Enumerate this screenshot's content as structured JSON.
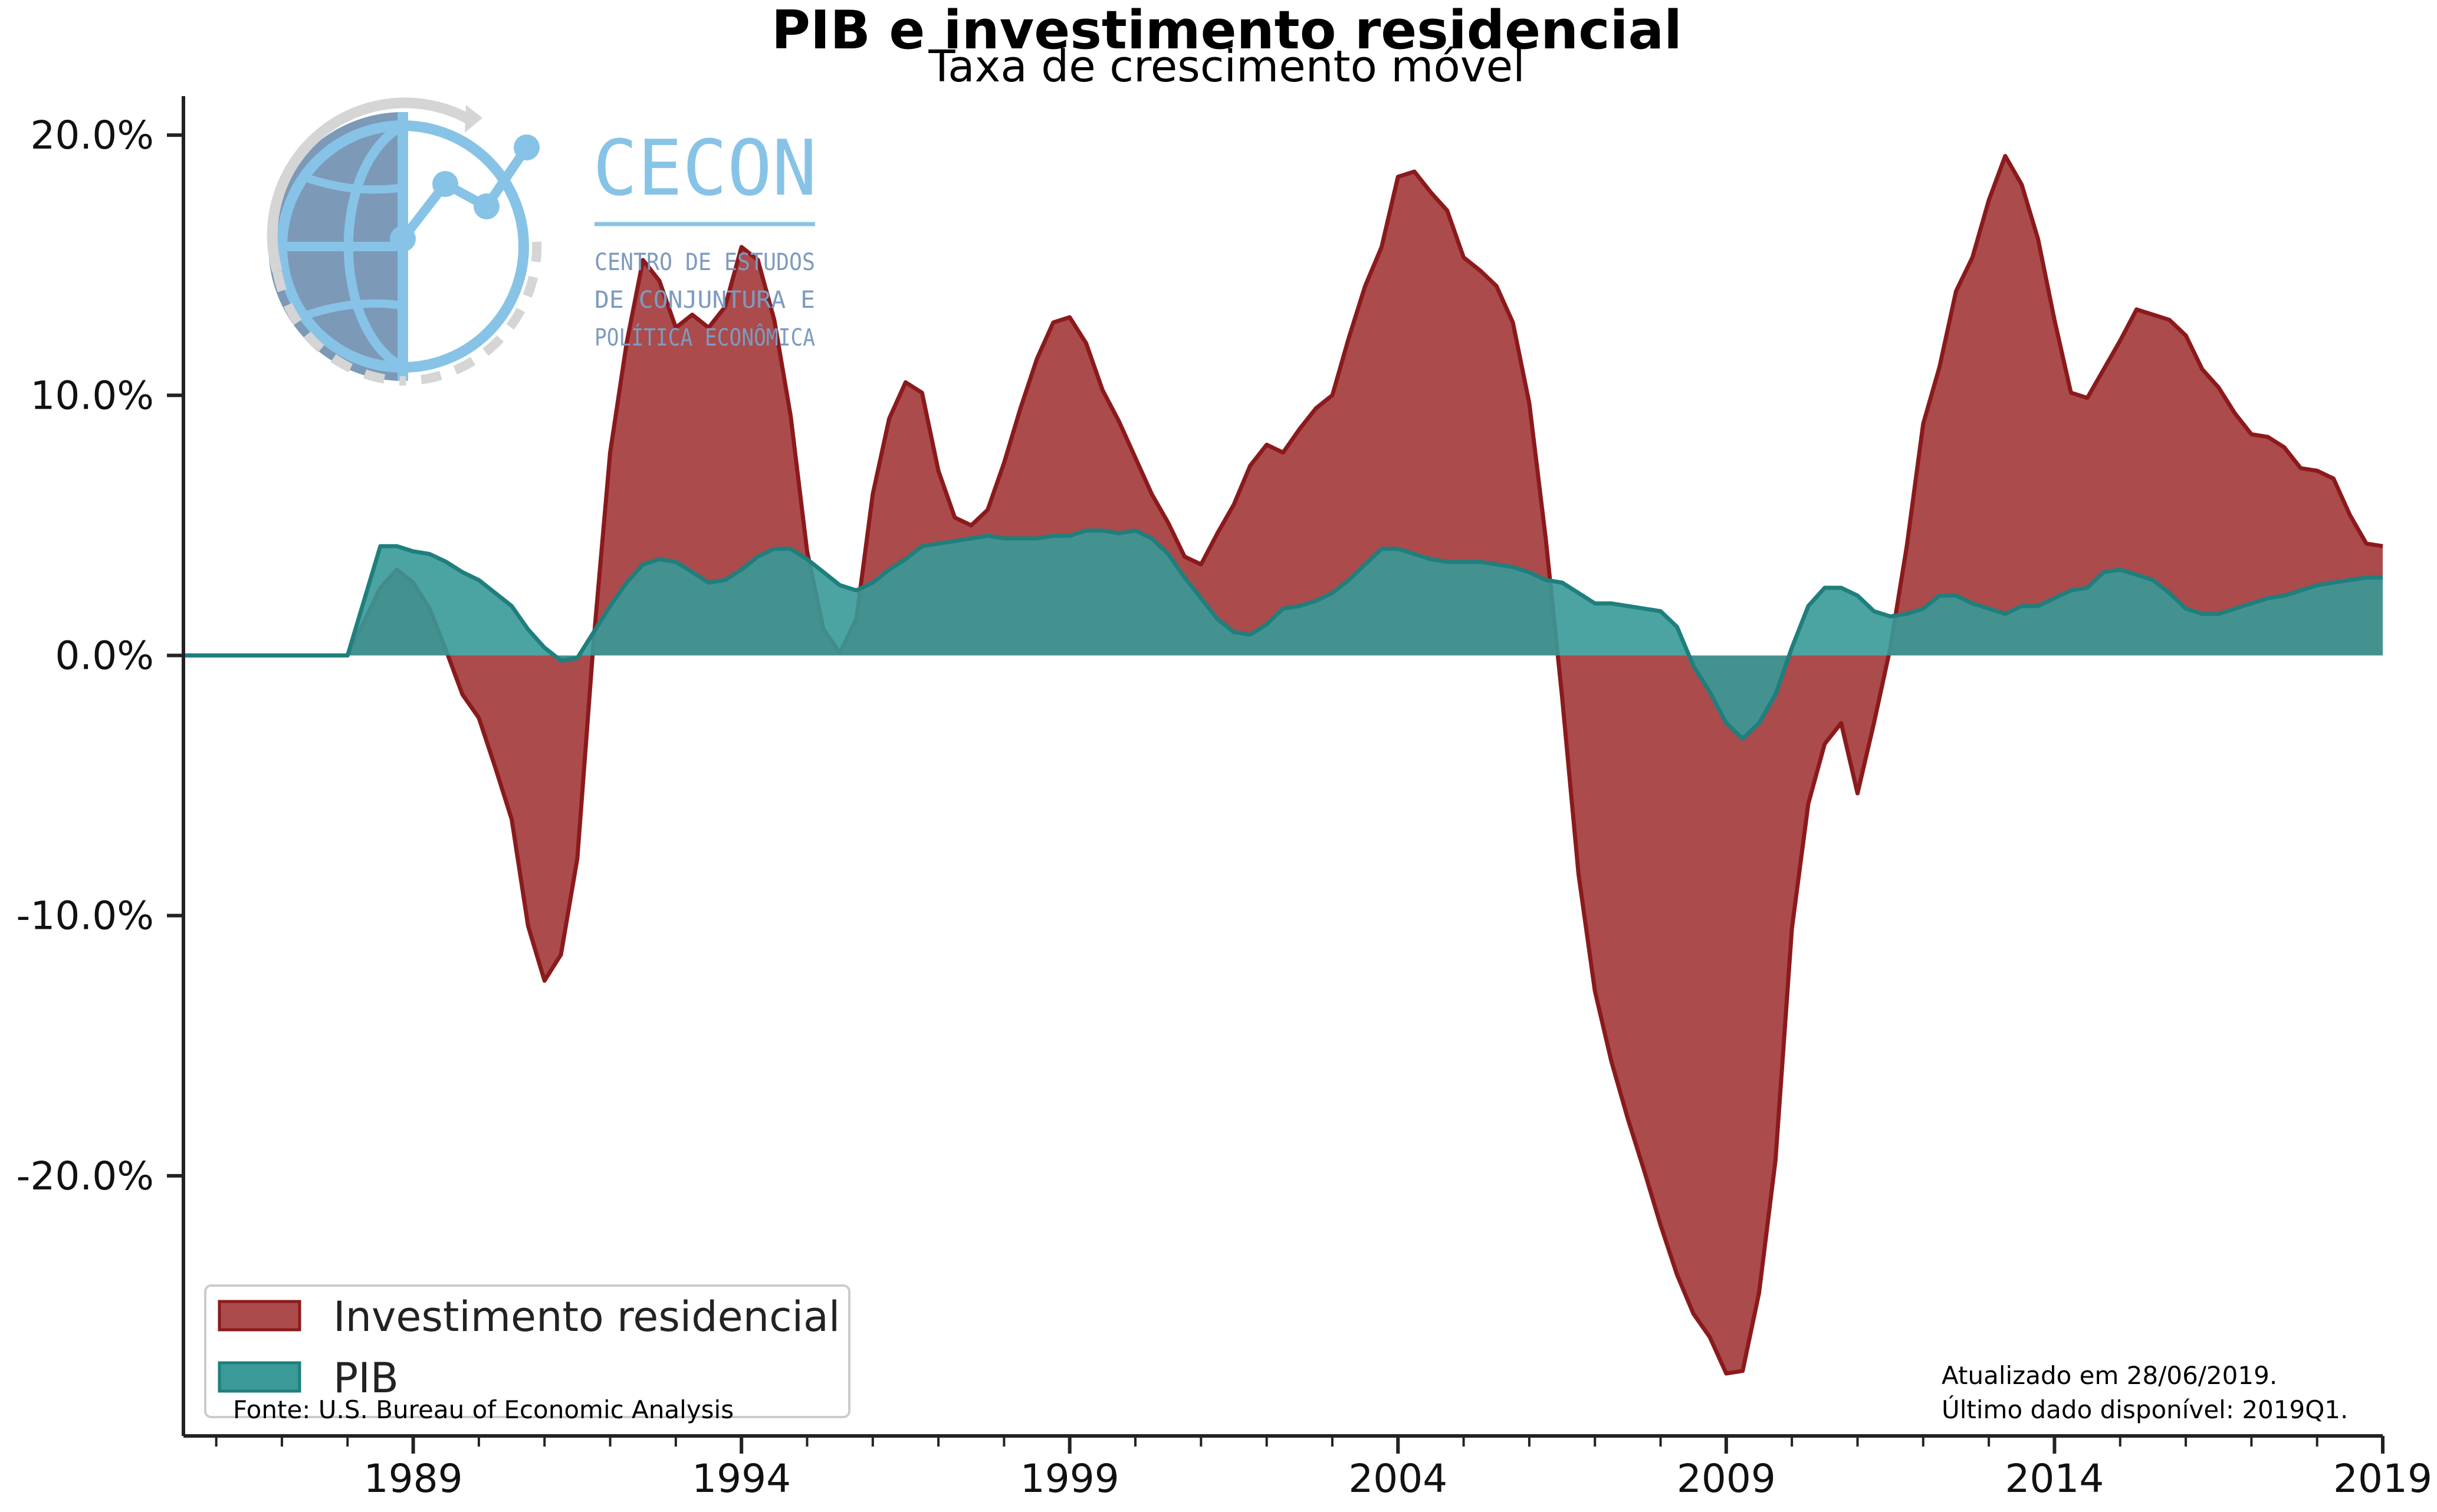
{
  "chart_data": {
    "type": "area",
    "title": "PIB e investimento residencial",
    "subtitle": "Taxa de crescimento móvel",
    "xlabel": "",
    "ylabel": "",
    "xlim": [
      1985.5,
      2019.0
    ],
    "ylim": [
      -30,
      21.5
    ],
    "x_ticks": [
      1989,
      1994,
      1999,
      2004,
      2009,
      2014,
      2019
    ],
    "x_tick_labels": [
      "1989",
      "1994",
      "1999",
      "2004",
      "2009",
      "2014",
      "2019"
    ],
    "y_ticks": [
      20,
      10,
      0,
      -10,
      -20
    ],
    "y_tick_labels": [
      "20.0%",
      "10.0%",
      "0.0%",
      "-10.0%",
      "-20.0%"
    ],
    "grid": false,
    "legend_position": "lower-left",
    "series": [
      {
        "name": "Investimento residencial",
        "color": "#ab4b4c",
        "edge_color": "#8b1a1c",
        "points": [
          [
            1985.5,
            0
          ],
          [
            1987.0,
            0
          ],
          [
            1988.0,
            0
          ],
          [
            1988.5,
            2.6
          ],
          [
            1988.75,
            3.3
          ],
          [
            1989.0,
            2.8
          ],
          [
            1989.25,
            1.8
          ],
          [
            1989.5,
            0.2
          ],
          [
            1989.75,
            -1.5
          ],
          [
            1990.0,
            -2.4
          ],
          [
            1990.25,
            -4.3
          ],
          [
            1990.5,
            -6.3
          ],
          [
            1990.75,
            -10.4
          ],
          [
            1991.0,
            -12.5
          ],
          [
            1991.25,
            -11.5
          ],
          [
            1991.5,
            -7.8
          ],
          [
            1991.75,
            0.6
          ],
          [
            1992.0,
            7.8
          ],
          [
            1992.25,
            12.0
          ],
          [
            1992.5,
            15.2
          ],
          [
            1992.75,
            14.4
          ],
          [
            1993.0,
            12.6
          ],
          [
            1993.25,
            13.1
          ],
          [
            1993.5,
            12.6
          ],
          [
            1993.75,
            13.4
          ],
          [
            1994.0,
            15.7
          ],
          [
            1994.25,
            15.2
          ],
          [
            1994.5,
            12.9
          ],
          [
            1994.75,
            9.2
          ],
          [
            1995.0,
            4.0
          ],
          [
            1995.25,
            1.0
          ],
          [
            1995.5,
            0.1
          ],
          [
            1995.75,
            1.4
          ],
          [
            1996.0,
            6.2
          ],
          [
            1996.25,
            9.1
          ],
          [
            1996.5,
            10.5
          ],
          [
            1996.75,
            10.1
          ],
          [
            1997.0,
            7.1
          ],
          [
            1997.25,
            5.3
          ],
          [
            1997.5,
            5.0
          ],
          [
            1997.75,
            5.6
          ],
          [
            1998.0,
            7.4
          ],
          [
            1998.25,
            9.5
          ],
          [
            1998.5,
            11.4
          ],
          [
            1998.75,
            12.8
          ],
          [
            1999.0,
            13.0
          ],
          [
            1999.25,
            12.0
          ],
          [
            1999.5,
            10.2
          ],
          [
            1999.75,
            9.0
          ],
          [
            2000.0,
            7.6
          ],
          [
            2000.25,
            6.2
          ],
          [
            2000.5,
            5.1
          ],
          [
            2000.75,
            3.8
          ],
          [
            2001.0,
            3.5
          ],
          [
            2001.25,
            4.7
          ],
          [
            2001.5,
            5.8
          ],
          [
            2001.75,
            7.3
          ],
          [
            2002.0,
            8.1
          ],
          [
            2002.25,
            7.8
          ],
          [
            2002.5,
            8.7
          ],
          [
            2002.75,
            9.5
          ],
          [
            2003.0,
            10.0
          ],
          [
            2003.25,
            12.2
          ],
          [
            2003.5,
            14.2
          ],
          [
            2003.75,
            15.7
          ],
          [
            2004.0,
            18.4
          ],
          [
            2004.25,
            18.6
          ],
          [
            2004.5,
            17.8
          ],
          [
            2004.75,
            17.1
          ],
          [
            2005.0,
            15.3
          ],
          [
            2005.25,
            14.8
          ],
          [
            2005.5,
            14.2
          ],
          [
            2005.75,
            12.8
          ],
          [
            2006.0,
            9.7
          ],
          [
            2006.25,
            4.5
          ],
          [
            2006.5,
            -1.6
          ],
          [
            2006.75,
            -8.4
          ],
          [
            2007.0,
            -12.9
          ],
          [
            2007.25,
            -15.6
          ],
          [
            2007.5,
            -17.8
          ],
          [
            2007.75,
            -19.8
          ],
          [
            2008.0,
            -21.9
          ],
          [
            2008.25,
            -23.8
          ],
          [
            2008.5,
            -25.3
          ],
          [
            2008.75,
            -26.2
          ],
          [
            2009.0,
            -27.6
          ],
          [
            2009.25,
            -27.5
          ],
          [
            2009.5,
            -24.5
          ],
          [
            2009.75,
            -19.4
          ],
          [
            2010.0,
            -10.5
          ],
          [
            2010.25,
            -5.7
          ],
          [
            2010.5,
            -3.4
          ],
          [
            2010.75,
            -2.6
          ],
          [
            2011.0,
            -5.3
          ],
          [
            2011.25,
            -2.6
          ],
          [
            2011.5,
            0.3
          ],
          [
            2011.75,
            4.2
          ],
          [
            2012.0,
            8.9
          ],
          [
            2012.25,
            11.1
          ],
          [
            2012.5,
            14.0
          ],
          [
            2012.75,
            15.3
          ],
          [
            2013.0,
            17.5
          ],
          [
            2013.25,
            19.2
          ],
          [
            2013.5,
            18.1
          ],
          [
            2013.75,
            16.0
          ],
          [
            2014.0,
            12.9
          ],
          [
            2014.25,
            10.1
          ],
          [
            2014.5,
            9.9
          ],
          [
            2014.75,
            11.0
          ],
          [
            2015.0,
            12.1
          ],
          [
            2015.25,
            13.3
          ],
          [
            2015.5,
            13.1
          ],
          [
            2015.75,
            12.9
          ],
          [
            2016.0,
            12.3
          ],
          [
            2016.25,
            11.0
          ],
          [
            2016.5,
            10.3
          ],
          [
            2016.75,
            9.3
          ],
          [
            2017.0,
            8.5
          ],
          [
            2017.25,
            8.4
          ],
          [
            2017.5,
            8.0
          ],
          [
            2017.75,
            7.2
          ],
          [
            2018.0,
            7.1
          ],
          [
            2018.25,
            6.8
          ],
          [
            2018.5,
            5.4
          ],
          [
            2018.75,
            4.3
          ],
          [
            2019.0,
            4.2
          ]
        ]
      },
      {
        "name": "PIB",
        "color": "#399a98",
        "edge_color": "#1f7f7d",
        "points": [
          [
            1985.5,
            0
          ],
          [
            1987.0,
            0
          ],
          [
            1988.0,
            0
          ],
          [
            1988.5,
            4.2
          ],
          [
            1988.75,
            4.2
          ],
          [
            1989.0,
            4.0
          ],
          [
            1989.25,
            3.9
          ],
          [
            1989.5,
            3.6
          ],
          [
            1989.75,
            3.2
          ],
          [
            1990.0,
            2.9
          ],
          [
            1990.25,
            2.4
          ],
          [
            1990.5,
            1.9
          ],
          [
            1990.75,
            1.0
          ],
          [
            1991.0,
            0.3
          ],
          [
            1991.25,
            -0.2
          ],
          [
            1991.5,
            -0.1
          ],
          [
            1991.75,
            0.9
          ],
          [
            1992.0,
            1.9
          ],
          [
            1992.25,
            2.8
          ],
          [
            1992.5,
            3.5
          ],
          [
            1992.75,
            3.7
          ],
          [
            1993.0,
            3.6
          ],
          [
            1993.25,
            3.2
          ],
          [
            1993.5,
            2.8
          ],
          [
            1993.75,
            2.9
          ],
          [
            1994.0,
            3.3
          ],
          [
            1994.25,
            3.8
          ],
          [
            1994.5,
            4.1
          ],
          [
            1994.75,
            4.1
          ],
          [
            1995.0,
            3.7
          ],
          [
            1995.25,
            3.2
          ],
          [
            1995.5,
            2.7
          ],
          [
            1995.75,
            2.5
          ],
          [
            1996.0,
            2.8
          ],
          [
            1996.25,
            3.3
          ],
          [
            1996.5,
            3.7
          ],
          [
            1996.75,
            4.2
          ],
          [
            1997.0,
            4.3
          ],
          [
            1997.25,
            4.4
          ],
          [
            1997.5,
            4.5
          ],
          [
            1997.75,
            4.6
          ],
          [
            1998.0,
            4.5
          ],
          [
            1998.25,
            4.5
          ],
          [
            1998.5,
            4.5
          ],
          [
            1998.75,
            4.6
          ],
          [
            1999.0,
            4.6
          ],
          [
            1999.25,
            4.8
          ],
          [
            1999.5,
            4.8
          ],
          [
            1999.75,
            4.7
          ],
          [
            2000.0,
            4.8
          ],
          [
            2000.25,
            4.5
          ],
          [
            2000.5,
            3.9
          ],
          [
            2000.75,
            3.0
          ],
          [
            2001.0,
            2.2
          ],
          [
            2001.25,
            1.4
          ],
          [
            2001.5,
            0.9
          ],
          [
            2001.75,
            0.8
          ],
          [
            2002.0,
            1.2
          ],
          [
            2002.25,
            1.8
          ],
          [
            2002.5,
            1.9
          ],
          [
            2002.75,
            2.1
          ],
          [
            2003.0,
            2.4
          ],
          [
            2003.25,
            2.9
          ],
          [
            2003.5,
            3.5
          ],
          [
            2003.75,
            4.1
          ],
          [
            2004.0,
            4.1
          ],
          [
            2004.25,
            3.9
          ],
          [
            2004.5,
            3.7
          ],
          [
            2004.75,
            3.6
          ],
          [
            2005.0,
            3.6
          ],
          [
            2005.25,
            3.6
          ],
          [
            2005.5,
            3.5
          ],
          [
            2005.75,
            3.4
          ],
          [
            2006.0,
            3.2
          ],
          [
            2006.25,
            2.9
          ],
          [
            2006.5,
            2.8
          ],
          [
            2006.75,
            2.4
          ],
          [
            2007.0,
            2.0
          ],
          [
            2007.25,
            2.0
          ],
          [
            2007.5,
            1.9
          ],
          [
            2007.75,
            1.8
          ],
          [
            2008.0,
            1.7
          ],
          [
            2008.25,
            1.1
          ],
          [
            2008.5,
            -0.4
          ],
          [
            2008.75,
            -1.4
          ],
          [
            2009.0,
            -2.6
          ],
          [
            2009.25,
            -3.2
          ],
          [
            2009.5,
            -2.6
          ],
          [
            2009.75,
            -1.5
          ],
          [
            2010.0,
            0.3
          ],
          [
            2010.25,
            1.9
          ],
          [
            2010.5,
            2.6
          ],
          [
            2010.75,
            2.6
          ],
          [
            2011.0,
            2.3
          ],
          [
            2011.25,
            1.7
          ],
          [
            2011.5,
            1.5
          ],
          [
            2011.75,
            1.6
          ],
          [
            2012.0,
            1.8
          ],
          [
            2012.25,
            2.3
          ],
          [
            2012.5,
            2.3
          ],
          [
            2012.75,
            2.0
          ],
          [
            2013.0,
            1.8
          ],
          [
            2013.25,
            1.6
          ],
          [
            2013.5,
            1.9
          ],
          [
            2013.75,
            1.9
          ],
          [
            2014.0,
            2.2
          ],
          [
            2014.25,
            2.5
          ],
          [
            2014.5,
            2.6
          ],
          [
            2014.75,
            3.2
          ],
          [
            2015.0,
            3.3
          ],
          [
            2015.25,
            3.1
          ],
          [
            2015.5,
            2.9
          ],
          [
            2015.75,
            2.4
          ],
          [
            2016.0,
            1.8
          ],
          [
            2016.25,
            1.6
          ],
          [
            2016.5,
            1.6
          ],
          [
            2016.75,
            1.8
          ],
          [
            2017.0,
            2.0
          ],
          [
            2017.25,
            2.2
          ],
          [
            2017.5,
            2.3
          ],
          [
            2017.75,
            2.5
          ],
          [
            2018.0,
            2.7
          ],
          [
            2018.25,
            2.8
          ],
          [
            2018.5,
            2.9
          ],
          [
            2018.75,
            3.0
          ],
          [
            2019.0,
            3.0
          ]
        ]
      }
    ]
  },
  "notes": {
    "source": "Fonte: U.S. Bureau of Economic Analysis",
    "updated": "Atualizado em 28/06/2019.",
    "last_data": "Último dado disponível: 2019Q1."
  },
  "logo": {
    "name": "CECON",
    "tagline_1": "CENTRO DE ESTUDOS",
    "tagline_2": "DE CONJUNTURA E",
    "tagline_3": "POLÍTICA ECONÔMICA",
    "color_main": "#87c3e6",
    "color_dark": "#5b7fa6",
    "color_gray": "#d5d5d5"
  }
}
